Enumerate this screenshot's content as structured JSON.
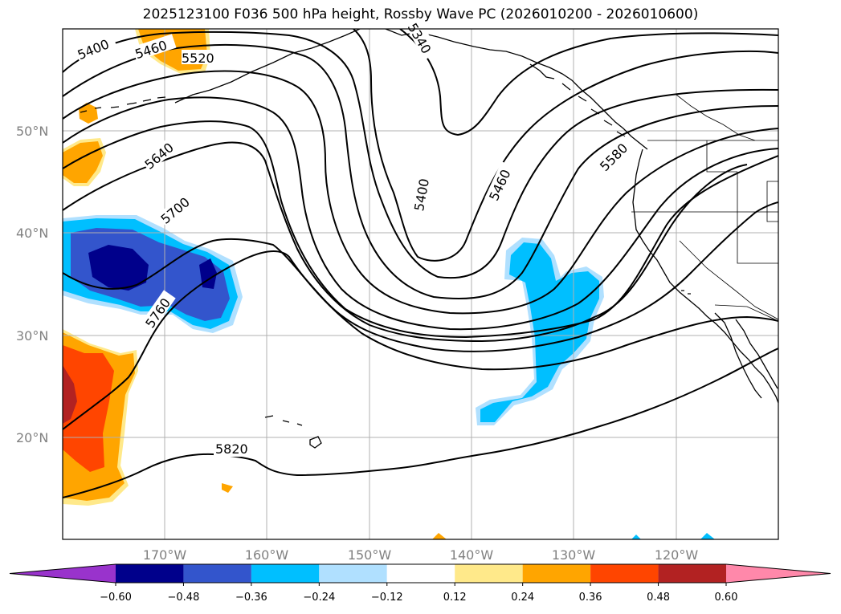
{
  "title": "2025123100 F036 500 hPa height, Rossby Wave PC (2026010200 - 2026010600)",
  "lat_labels": [
    "50°N",
    "40°N",
    "30°N",
    "20°N"
  ],
  "lon_labels": [
    "170°W",
    "160°W",
    "150°W",
    "140°W",
    "130°W",
    "120°W"
  ],
  "contour_labels": [
    "5400",
    "5460",
    "5520",
    "5340",
    "5640",
    "5700",
    "5400",
    "5460",
    "5580",
    "5760",
    "5820"
  ],
  "colorbar": {
    "ticks": [
      "−0.60",
      "−0.48",
      "−0.36",
      "−0.24",
      "−0.12",
      "0.12",
      "0.24",
      "0.36",
      "0.48",
      "0.60"
    ],
    "colors": [
      "#9933cc",
      "#00008b",
      "#3355cc",
      "#00bfff",
      "#b0e0ff",
      "#ffffff",
      "#ffe98a",
      "#ffa500",
      "#ff4500",
      "#b22222",
      "#ff88aa"
    ]
  }
}
